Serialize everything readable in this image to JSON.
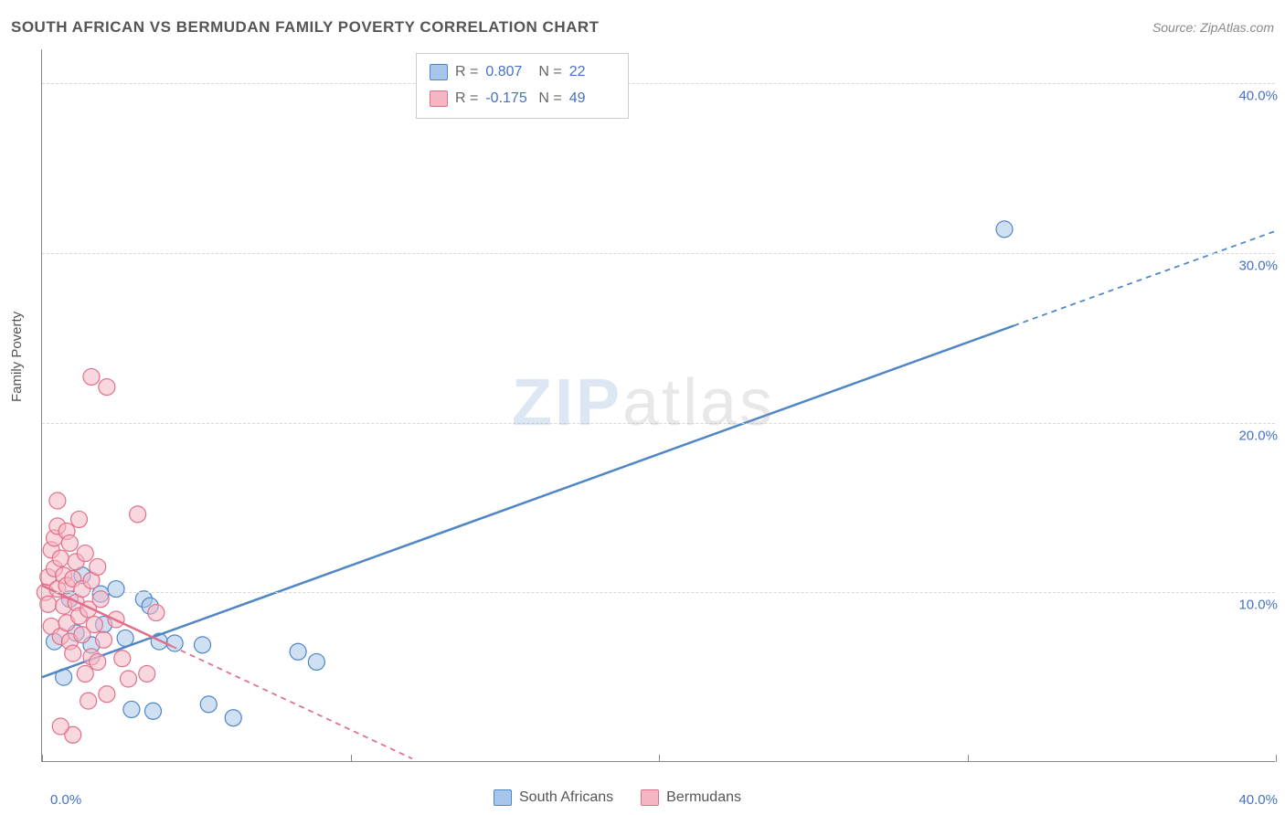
{
  "title": "SOUTH AFRICAN VS BERMUDAN FAMILY POVERTY CORRELATION CHART",
  "source_label": "Source: ZipAtlas.com",
  "ylabel": "Family Poverty",
  "watermark": {
    "part1": "ZIP",
    "part2": "atlas"
  },
  "chart": {
    "type": "scatter-with-regression",
    "background_color": "#ffffff",
    "grid_color": "#d8d8d8",
    "axis_color": "#888888",
    "label_color": "#4472c4",
    "xlim": [
      0,
      40
    ],
    "ylim": [
      0,
      42
    ],
    "yticks": [
      10,
      20,
      30,
      40
    ],
    "ytick_labels": [
      "10.0%",
      "20.0%",
      "30.0%",
      "40.0%"
    ],
    "xtick_labels": {
      "min": "0.0%",
      "max": "40.0%"
    },
    "x_vticks": [
      0,
      10,
      20,
      30,
      40
    ],
    "marker_radius": 9,
    "marker_stroke_width": 1.2,
    "line_width": 2.5,
    "dash_pattern": "6 5",
    "series": [
      {
        "name": "South Africans",
        "fill": "#a8c6ea",
        "stroke": "#4f86c6",
        "opacity": 0.55,
        "R": "0.807",
        "N": "22",
        "points": [
          [
            0.4,
            7.1
          ],
          [
            0.7,
            5.0
          ],
          [
            0.9,
            9.6
          ],
          [
            1.1,
            7.6
          ],
          [
            1.3,
            11.0
          ],
          [
            1.6,
            6.9
          ],
          [
            1.9,
            9.9
          ],
          [
            2.4,
            10.2
          ],
          [
            2.0,
            8.1
          ],
          [
            2.7,
            7.3
          ],
          [
            2.9,
            3.1
          ],
          [
            3.3,
            9.6
          ],
          [
            3.5,
            9.2
          ],
          [
            3.8,
            7.1
          ],
          [
            3.6,
            3.0
          ],
          [
            4.3,
            7.0
          ],
          [
            5.2,
            6.9
          ],
          [
            5.4,
            3.4
          ],
          [
            8.3,
            6.5
          ],
          [
            8.9,
            5.9
          ],
          [
            6.2,
            2.6
          ],
          [
            31.2,
            31.4
          ]
        ],
        "trend": {
          "x1": 0,
          "y1": 5.0,
          "x2": 40,
          "y2": 31.3,
          "solid_until_x": 31.5
        }
      },
      {
        "name": "Bermudans",
        "fill": "#f4b6c2",
        "stroke": "#e26f8a",
        "opacity": 0.55,
        "R": "-0.175",
        "N": "49",
        "points": [
          [
            0.1,
            10.0
          ],
          [
            0.2,
            9.3
          ],
          [
            0.2,
            10.9
          ],
          [
            0.3,
            8.0
          ],
          [
            0.3,
            12.5
          ],
          [
            0.4,
            11.4
          ],
          [
            0.4,
            13.2
          ],
          [
            0.5,
            10.2
          ],
          [
            0.5,
            13.9
          ],
          [
            0.5,
            15.4
          ],
          [
            0.6,
            12.0
          ],
          [
            0.6,
            7.4
          ],
          [
            0.7,
            9.2
          ],
          [
            0.7,
            11.0
          ],
          [
            0.8,
            8.2
          ],
          [
            0.8,
            10.4
          ],
          [
            0.8,
            13.6
          ],
          [
            0.9,
            7.1
          ],
          [
            0.9,
            12.9
          ],
          [
            1.0,
            10.8
          ],
          [
            1.0,
            6.4
          ],
          [
            1.1,
            9.4
          ],
          [
            1.1,
            11.8
          ],
          [
            1.2,
            8.6
          ],
          [
            1.2,
            14.3
          ],
          [
            1.3,
            7.5
          ],
          [
            1.3,
            10.2
          ],
          [
            1.4,
            5.2
          ],
          [
            1.4,
            12.3
          ],
          [
            1.5,
            9.0
          ],
          [
            1.5,
            3.6
          ],
          [
            1.6,
            6.2
          ],
          [
            1.6,
            10.7
          ],
          [
            1.7,
            8.1
          ],
          [
            1.8,
            11.5
          ],
          [
            1.8,
            5.9
          ],
          [
            1.9,
            9.6
          ],
          [
            2.0,
            7.2
          ],
          [
            2.1,
            4.0
          ],
          [
            2.1,
            22.1
          ],
          [
            1.6,
            22.7
          ],
          [
            2.4,
            8.4
          ],
          [
            2.6,
            6.1
          ],
          [
            2.8,
            4.9
          ],
          [
            3.1,
            14.6
          ],
          [
            3.4,
            5.2
          ],
          [
            3.7,
            8.8
          ],
          [
            1.0,
            1.6
          ],
          [
            0.6,
            2.1
          ]
        ],
        "trend": {
          "x1": 0,
          "y1": 10.4,
          "x2": 12,
          "y2": 0.2,
          "solid_until_x": 4.2
        }
      }
    ]
  },
  "stats_labels": {
    "R": "R  =",
    "N": "N  ="
  },
  "legend_items": [
    "South Africans",
    "Bermudans"
  ]
}
